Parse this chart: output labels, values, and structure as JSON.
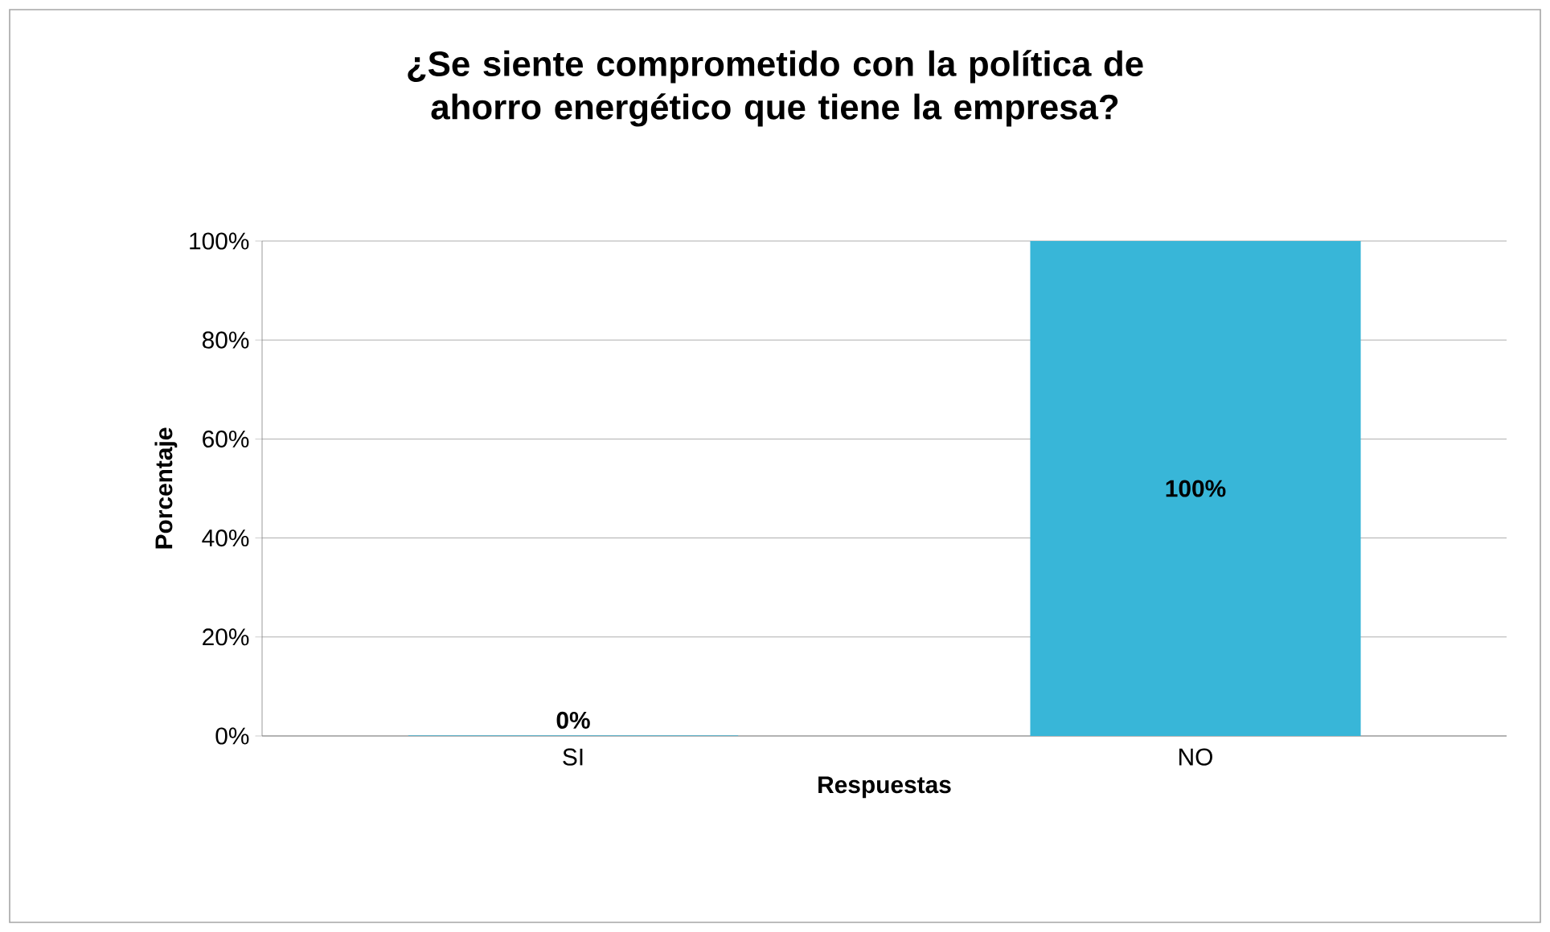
{
  "chart_data": {
    "type": "bar",
    "title": "¿Se siente comprometido con la política de ahorro energético que tiene la empresa?",
    "xlabel": "Respuestas",
    "ylabel": "Porcentaje",
    "categories": [
      "SI",
      "NO"
    ],
    "values": [
      0,
      100
    ],
    "value_labels": [
      "0%",
      "100%"
    ],
    "color": "#38b6d8",
    "ylim": [
      0,
      100
    ],
    "yticks": [
      {
        "value": 0,
        "label": "0%"
      },
      {
        "value": 20,
        "label": "20%"
      },
      {
        "value": 40,
        "label": "40%"
      },
      {
        "value": 60,
        "label": "60%"
      },
      {
        "value": 80,
        "label": "80%"
      },
      {
        "value": 100,
        "label": "100%"
      }
    ],
    "grid": "y"
  }
}
